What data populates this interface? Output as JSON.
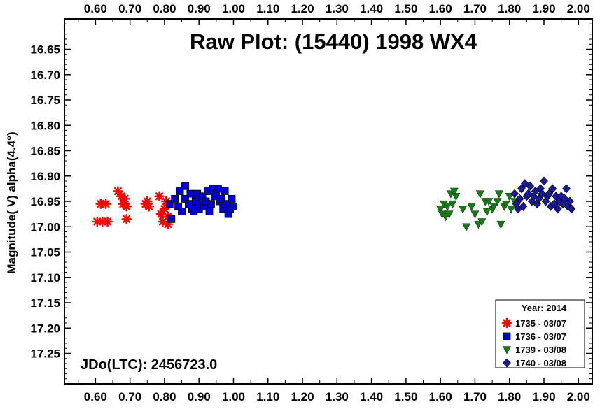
{
  "chart_data": {
    "type": "scatter",
    "title": "Raw Plot: (15440) 1998 WX4",
    "xlabel": "",
    "ylabel": "Magnitude( V) alpha(4.4°)",
    "annotation": "JDo(LTC): 2456723.0",
    "xlim": [
      0.51,
      2.04
    ],
    "ylim": [
      17.31,
      16.59
    ],
    "y_inverted": true,
    "x_ticks": [
      0.6,
      0.7,
      0.8,
      0.9,
      1.0,
      1.1,
      1.2,
      1.3,
      1.4,
      1.5,
      1.6,
      1.7,
      1.8,
      1.9,
      2.0
    ],
    "x_tick_labels": [
      "0.60",
      "0.70",
      "0.80",
      "0.90",
      "1.00",
      "1.10",
      "1.20",
      "1.30",
      "1.40",
      "1.50",
      "1.60",
      "1.70",
      "1.80",
      "1.90",
      "2.00"
    ],
    "y_ticks": [
      16.65,
      16.7,
      16.75,
      16.8,
      16.85,
      16.9,
      16.95,
      17.0,
      17.05,
      17.1,
      17.15,
      17.2,
      17.25
    ],
    "y_tick_labels": [
      "16.65",
      "16.70",
      "16.75",
      "16.80",
      "16.85",
      "16.90",
      "16.95",
      "17.00",
      "17.05",
      "17.10",
      "17.15",
      "17.20",
      "17.25"
    ],
    "legend": {
      "title": "Year: 2014",
      "position": "bottom-right"
    },
    "series": [
      {
        "name": "1735 - 03/07",
        "marker": "asterisk",
        "color": "#ff0000",
        "points": [
          [
            0.605,
            16.99
          ],
          [
            0.615,
            16.955
          ],
          [
            0.62,
            16.99
          ],
          [
            0.63,
            16.955
          ],
          [
            0.635,
            16.99
          ],
          [
            0.665,
            16.93
          ],
          [
            0.675,
            16.94
          ],
          [
            0.68,
            16.955
          ],
          [
            0.685,
            16.945
          ],
          [
            0.69,
            16.96
          ],
          [
            0.69,
            16.985
          ],
          [
            0.745,
            16.955
          ],
          [
            0.75,
            16.95
          ],
          [
            0.755,
            16.96
          ],
          [
            0.785,
            16.94
          ],
          [
            0.79,
            16.975
          ],
          [
            0.795,
            16.99
          ],
          [
            0.8,
            16.965
          ],
          [
            0.805,
            16.95
          ],
          [
            0.81,
            16.98
          ],
          [
            0.81,
            16.995
          ]
        ]
      },
      {
        "name": "1736 - 03/07",
        "marker": "square",
        "color": "#0000dd",
        "points": [
          [
            0.815,
            16.955
          ],
          [
            0.82,
            16.985
          ],
          [
            0.83,
            16.945
          ],
          [
            0.84,
            16.96
          ],
          [
            0.845,
            16.93
          ],
          [
            0.85,
            16.97
          ],
          [
            0.86,
            16.92
          ],
          [
            0.86,
            16.945
          ],
          [
            0.87,
            16.955
          ],
          [
            0.875,
            16.935
          ],
          [
            0.88,
            16.965
          ],
          [
            0.885,
            16.97
          ],
          [
            0.89,
            16.95
          ],
          [
            0.895,
            16.935
          ],
          [
            0.9,
            16.965
          ],
          [
            0.905,
            16.955
          ],
          [
            0.91,
            16.94
          ],
          [
            0.915,
            16.96
          ],
          [
            0.92,
            16.95
          ],
          [
            0.925,
            16.93
          ],
          [
            0.93,
            16.97
          ],
          [
            0.935,
            16.955
          ],
          [
            0.94,
            16.925
          ],
          [
            0.945,
            16.94
          ],
          [
            0.95,
            16.935
          ],
          [
            0.955,
            16.925
          ],
          [
            0.96,
            16.95
          ],
          [
            0.965,
            16.945
          ],
          [
            0.97,
            16.965
          ],
          [
            0.975,
            16.93
          ],
          [
            0.98,
            16.955
          ],
          [
            0.985,
            16.975
          ],
          [
            0.99,
            16.965
          ],
          [
            0.995,
            16.945
          ],
          [
            1.0,
            16.96
          ]
        ]
      },
      {
        "name": "1739 - 03/08",
        "marker": "triangle-down",
        "color": "#1a7a1a",
        "points": [
          [
            1.6,
            16.965
          ],
          [
            1.605,
            16.975
          ],
          [
            1.61,
            16.955
          ],
          [
            1.615,
            16.98
          ],
          [
            1.62,
            16.96
          ],
          [
            1.625,
            16.975
          ],
          [
            1.63,
            16.935
          ],
          [
            1.635,
            16.955
          ],
          [
            1.64,
            16.93
          ],
          [
            1.645,
            16.94
          ],
          [
            1.665,
            16.965
          ],
          [
            1.675,
            17.0
          ],
          [
            1.69,
            16.96
          ],
          [
            1.7,
            16.975
          ],
          [
            1.71,
            16.995
          ],
          [
            1.715,
            16.935
          ],
          [
            1.72,
            16.99
          ],
          [
            1.73,
            16.95
          ],
          [
            1.735,
            16.97
          ],
          [
            1.74,
            16.95
          ],
          [
            1.75,
            16.965
          ],
          [
            1.755,
            16.96
          ],
          [
            1.765,
            16.95
          ],
          [
            1.77,
            16.935
          ],
          [
            1.775,
            16.995
          ],
          [
            1.785,
            16.96
          ],
          [
            1.79,
            16.955
          ],
          [
            1.8,
            16.94
          ],
          [
            1.805,
            16.965
          ],
          [
            1.815,
            16.95
          ]
        ]
      },
      {
        "name": "1740 - 03/08",
        "marker": "diamond",
        "color": "#1a1a99",
        "points": [
          [
            1.815,
            16.935
          ],
          [
            1.82,
            16.955
          ],
          [
            1.825,
            16.965
          ],
          [
            1.83,
            16.945
          ],
          [
            1.835,
            16.925
          ],
          [
            1.84,
            16.96
          ],
          [
            1.845,
            16.915
          ],
          [
            1.85,
            16.94
          ],
          [
            1.855,
            16.935
          ],
          [
            1.86,
            16.92
          ],
          [
            1.865,
            16.95
          ],
          [
            1.87,
            16.94
          ],
          [
            1.875,
            16.93
          ],
          [
            1.88,
            16.955
          ],
          [
            1.885,
            16.945
          ],
          [
            1.89,
            16.925
          ],
          [
            1.895,
            16.935
          ],
          [
            1.9,
            16.91
          ],
          [
            1.905,
            16.95
          ],
          [
            1.91,
            16.94
          ],
          [
            1.915,
            16.935
          ],
          [
            1.92,
            16.96
          ],
          [
            1.925,
            16.925
          ],
          [
            1.93,
            16.955
          ],
          [
            1.935,
            16.94
          ],
          [
            1.94,
            16.965
          ],
          [
            1.945,
            16.95
          ],
          [
            1.95,
            16.94
          ],
          [
            1.955,
            16.955
          ],
          [
            1.96,
            16.945
          ],
          [
            1.965,
            16.925
          ],
          [
            1.97,
            16.96
          ],
          [
            1.975,
            16.95
          ],
          [
            1.98,
            16.965
          ]
        ]
      }
    ]
  }
}
